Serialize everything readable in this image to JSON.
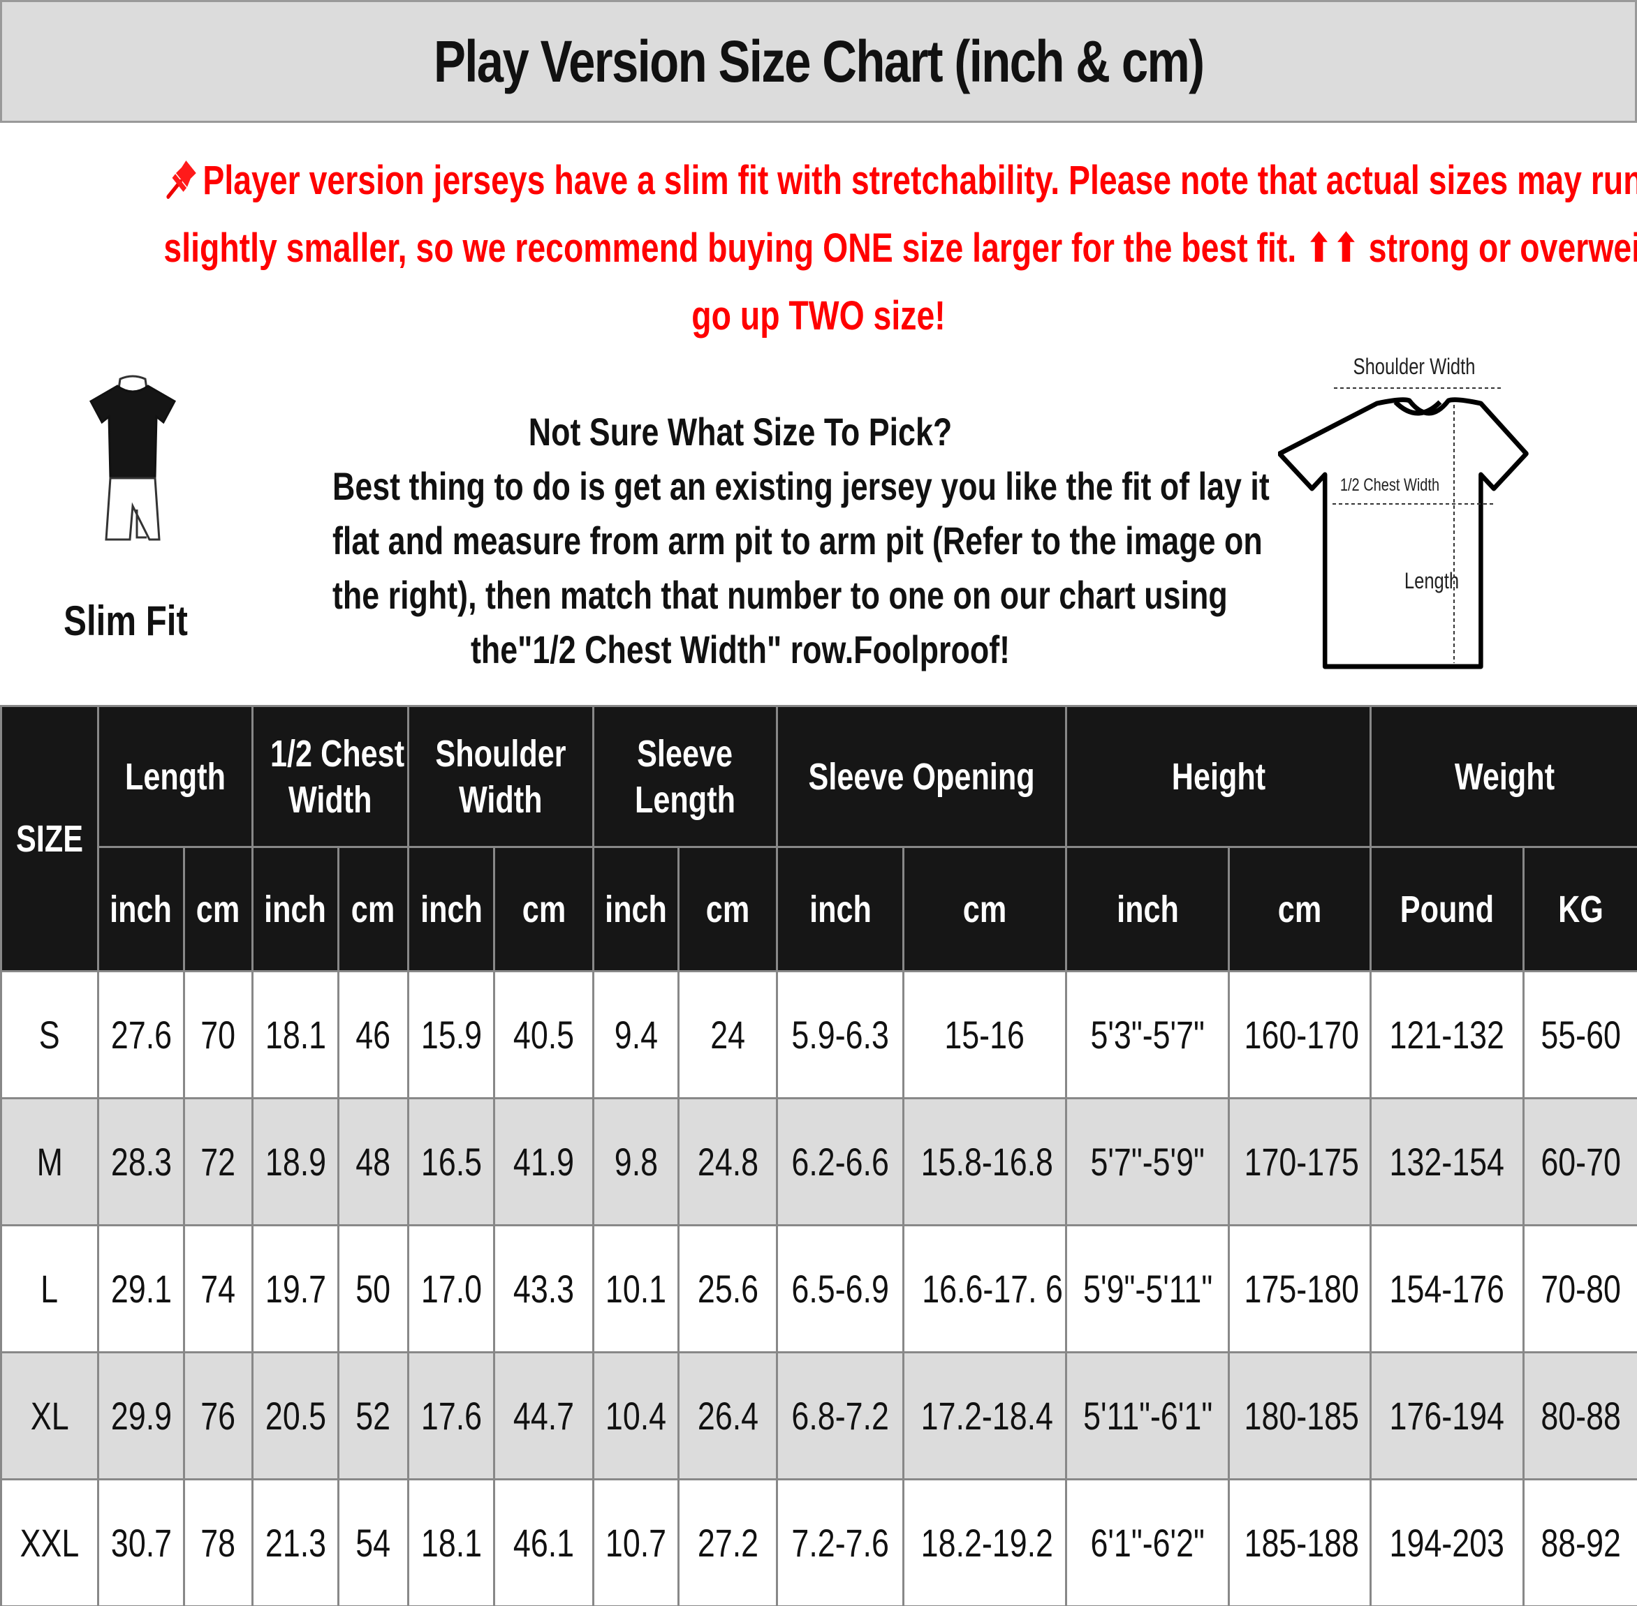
{
  "title": "Play Version Size Chart (inch & cm)",
  "notice": {
    "icon": "pushpin-icon",
    "lines": [
      "Player version jerseys have a slim fit with stretchability. Please note that actual sizes may run",
      "slightly smaller, so we recommend buying ONE size larger for the best fit. ⬆⬆ strong or overweight,",
      "go up TWO size!"
    ],
    "color": "#ff0000"
  },
  "fit_label": "Slim Fit",
  "guide": {
    "heading": "Not Sure What Size To Pick?",
    "lines": [
      "Best thing to do is get an existing jersey you like the fit of lay it",
      "flat and measure from arm pit to arm pit (Refer to the image on",
      "the right), then match that number to one on our chart using",
      "the\"1/2 Chest Width\" row.Foolproof!"
    ]
  },
  "diagram": {
    "shoulder_width": "Shoulder Width",
    "chest_width": "1/2 Chest Width",
    "length": "Length"
  },
  "table": {
    "size_header": "SIZE",
    "groups": [
      {
        "label1": "Length",
        "label2": "",
        "units": [
          "inch",
          "cm"
        ]
      },
      {
        "label1": "1/2 Chest",
        "label2": "Width",
        "units": [
          "inch",
          "cm"
        ]
      },
      {
        "label1": "Shoulder",
        "label2": "Width",
        "units": [
          "inch",
          "cm"
        ]
      },
      {
        "label1": "Sleeve",
        "label2": "Length",
        "units": [
          "inch",
          "cm"
        ]
      },
      {
        "label1": "Sleeve Opening",
        "label2": "",
        "units": [
          "inch",
          "cm"
        ]
      },
      {
        "label1": "Height",
        "label2": "",
        "units": [
          "inch",
          "cm"
        ]
      },
      {
        "label1": "Weight",
        "label2": "",
        "units": [
          "Pound",
          "KG"
        ]
      }
    ],
    "rows": [
      [
        "S",
        "27.6",
        "70",
        "18.1",
        "46",
        "15.9",
        "40.5",
        "9.4",
        "24",
        "5.9-6.3",
        "15-16",
        "5'3\"-5'7\"",
        "160-170",
        "121-132",
        "55-60"
      ],
      [
        "M",
        "28.3",
        "72",
        "18.9",
        "48",
        "16.5",
        "41.9",
        "9.8",
        "24.8",
        "6.2-6.6",
        "15.8-16.8",
        "5'7\"-5'9\"",
        "170-175",
        "132-154",
        "60-70"
      ],
      [
        "L",
        "29.1",
        "74",
        "19.7",
        "50",
        "17.0",
        "43.3",
        "10.1",
        "25.6",
        "6.5-6.9",
        "16.6-17. 6",
        "5'9\"-5'11\"",
        "175-180",
        "154-176",
        "70-80"
      ],
      [
        "XL",
        "29.9",
        "76",
        "20.5",
        "52",
        "17.6",
        "44.7",
        "10.4",
        "26.4",
        "6.8-7.2",
        "17.2-18.4",
        "5'11\"-6'1\"",
        "180-185",
        "176-194",
        "80-88"
      ],
      [
        "XXL",
        "30.7",
        "78",
        "21.3",
        "54",
        "18.1",
        "46.1",
        "10.7",
        "27.2",
        "7.2-7.6",
        "18.2-19.2",
        "6'1\"-6'2\"",
        "185-188",
        "194-203",
        "88-92"
      ]
    ]
  }
}
